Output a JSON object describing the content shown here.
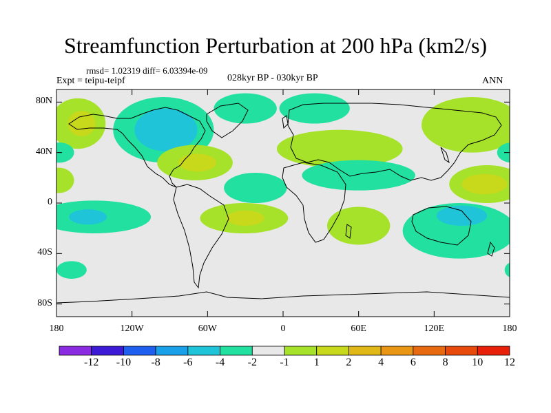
{
  "chart_data": {
    "type": "heatmap",
    "title": "Streamfunction Perturbation at 200 hPa (km2/s)",
    "stats": "rmsd= 1.02319 diff= 6.03394e-09",
    "experiment": "Expt = teipu-teipf",
    "period": "028kyr BP - 030kyr BP",
    "season": "ANN",
    "x_range": [
      -180,
      180
    ],
    "y_range": [
      -90,
      90
    ],
    "y_ticks": [
      {
        "value": 80,
        "label": "80N"
      },
      {
        "value": 40,
        "label": "40N"
      },
      {
        "value": 0,
        "label": "0"
      },
      {
        "value": -40,
        "label": "40S"
      },
      {
        "value": -80,
        "label": "80S"
      }
    ],
    "x_ticks": [
      {
        "value": -180,
        "label": "180"
      },
      {
        "value": -120,
        "label": "120W"
      },
      {
        "value": -60,
        "label": "60W"
      },
      {
        "value": 0,
        "label": "0"
      },
      {
        "value": 60,
        "label": "60E"
      },
      {
        "value": 120,
        "label": "120E"
      },
      {
        "value": 180,
        "label": "180"
      }
    ],
    "colorbar": {
      "colors": [
        "#8a2be2",
        "#3c1ad6",
        "#1e5ff0",
        "#1aa0e8",
        "#20c4d8",
        "#22e0a0",
        "#e8e8e8",
        "#a6e22a",
        "#c8d81a",
        "#e0b818",
        "#e89614",
        "#e86a10",
        "#e84a0c",
        "#e8200a"
      ],
      "labels": [
        "-12",
        "-10",
        "-8",
        "-6",
        "-4",
        "-2",
        "-1",
        "1",
        "2",
        "4",
        "6",
        "8",
        "10",
        "12"
      ]
    },
    "blobs": [
      {
        "lon": -163,
        "lat": 63,
        "rx": 22,
        "ry": 20,
        "level": 2
      },
      {
        "lon": -160,
        "lat": 63,
        "rx": 11,
        "ry": 10,
        "level": 4
      },
      {
        "lon": -95,
        "lat": 58,
        "rx": 40,
        "ry": 26,
        "level": -2
      },
      {
        "lon": -93,
        "lat": 58,
        "rx": 25,
        "ry": 17,
        "level": -4
      },
      {
        "lon": -70,
        "lat": 32,
        "rx": 30,
        "ry": 14,
        "level": 2
      },
      {
        "lon": -68,
        "lat": 32,
        "rx": 15,
        "ry": 7,
        "level": 4
      },
      {
        "lon": -30,
        "lat": 75,
        "rx": 25,
        "ry": 12,
        "level": -2
      },
      {
        "lon": 25,
        "lat": 75,
        "rx": 28,
        "ry": 12,
        "level": -2
      },
      {
        "lon": 45,
        "lat": 43,
        "rx": 50,
        "ry": 15,
        "level": 2
      },
      {
        "lon": 150,
        "lat": 62,
        "rx": 40,
        "ry": 22,
        "level": 2
      },
      {
        "lon": -178,
        "lat": 40,
        "rx": 12,
        "ry": 8,
        "level": -2
      },
      {
        "lon": 182,
        "lat": 40,
        "rx": 12,
        "ry": 8,
        "level": -2
      },
      {
        "lon": -22,
        "lat": 12,
        "rx": 25,
        "ry": 12,
        "level": -2
      },
      {
        "lon": 60,
        "lat": 22,
        "rx": 45,
        "ry": 12,
        "level": -2
      },
      {
        "lon": -178,
        "lat": 18,
        "rx": 12,
        "ry": 10,
        "level": 2
      },
      {
        "lon": 162,
        "lat": 15,
        "rx": 30,
        "ry": 15,
        "level": 2
      },
      {
        "lon": 160,
        "lat": 15,
        "rx": 18,
        "ry": 8,
        "level": 4
      },
      {
        "lon": -150,
        "lat": -11,
        "rx": 45,
        "ry": 13,
        "level": -2
      },
      {
        "lon": -155,
        "lat": -11,
        "rx": 15,
        "ry": 6,
        "level": -4
      },
      {
        "lon": -31,
        "lat": -12,
        "rx": 35,
        "ry": 12,
        "level": 2
      },
      {
        "lon": -30,
        "lat": -12,
        "rx": 15,
        "ry": 6,
        "level": 4
      },
      {
        "lon": 60,
        "lat": -18,
        "rx": 25,
        "ry": 15,
        "level": 2
      },
      {
        "lon": 140,
        "lat": -22,
        "rx": 45,
        "ry": 22,
        "level": -2
      },
      {
        "lon": 142,
        "lat": -10,
        "rx": 20,
        "ry": 8,
        "level": -4
      },
      {
        "lon": -168,
        "lat": -53,
        "rx": 12,
        "ry": 7,
        "level": -2
      },
      {
        "lon": 182,
        "lat": -53,
        "rx": 6,
        "ry": 6,
        "level": -2
      }
    ]
  }
}
